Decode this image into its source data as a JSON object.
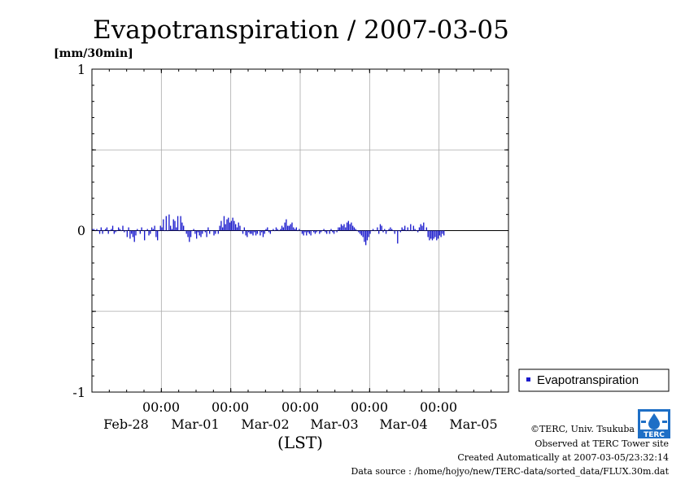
{
  "chart_data": {
    "type": "bar",
    "title": "Evapotranspiration / 2007-03-05",
    "ylabel": "[mm/30min]",
    "xlabel": "(LST)",
    "ylim": [
      -1,
      1
    ],
    "yticks": [
      "1",
      "0",
      "-1"
    ],
    "x_time_labels": [
      "00:00",
      "00:00",
      "00:00",
      "00:00",
      "00:00"
    ],
    "x_date_labels": [
      "Feb-28",
      "Mar-01",
      "Mar-02",
      "Mar-03",
      "Mar-04",
      "Mar-05"
    ],
    "x_range_days": [
      0.0,
      6.0
    ],
    "midnight_positions_days": [
      1,
      2,
      3,
      4,
      5
    ],
    "grid": true,
    "legend_position": "right",
    "series": [
      {
        "name": "Evapotranspiration",
        "color": "#1a1acc",
        "interval_minutes": 30,
        "start_day": 0.0,
        "values": [
          0.01,
          0.01,
          0.0,
          0.01,
          0.0,
          -0.02,
          0.02,
          -0.02,
          0.0,
          0.01,
          0.02,
          -0.02,
          0.0,
          0.01,
          0.03,
          -0.02,
          -0.01,
          0.0,
          0.02,
          0.01,
          0.0,
          0.03,
          -0.01,
          0.0,
          -0.04,
          0.02,
          -0.05,
          -0.02,
          -0.04,
          -0.07,
          -0.03,
          0.01,
          0.0,
          -0.02,
          0.02,
          0.0,
          -0.06,
          0.0,
          0.01,
          -0.03,
          -0.02,
          0.02,
          0.01,
          0.03,
          -0.04,
          -0.06,
          0.0,
          0.03,
          0.02,
          0.07,
          0.0,
          0.09,
          0.0,
          0.1,
          0.03,
          0.01,
          0.07,
          0.06,
          0.02,
          0.09,
          0.0,
          0.09,
          0.05,
          0.03,
          0.0,
          -0.02,
          -0.04,
          -0.07,
          -0.04,
          0.0,
          0.01,
          -0.02,
          -0.05,
          -0.01,
          -0.03,
          -0.04,
          -0.02,
          0.0,
          -0.01,
          -0.04,
          0.02,
          -0.02,
          0.0,
          0.0,
          -0.03,
          -0.02,
          0.0,
          -0.02,
          0.03,
          0.06,
          0.02,
          0.09,
          0.04,
          0.07,
          0.08,
          0.05,
          0.06,
          0.08,
          0.06,
          0.04,
          0.02,
          0.05,
          0.03,
          0.0,
          -0.02,
          0.02,
          -0.03,
          -0.04,
          -0.01,
          -0.02,
          -0.02,
          -0.03,
          -0.01,
          -0.03,
          -0.02,
          0.0,
          -0.03,
          -0.01,
          -0.04,
          -0.02,
          0.01,
          0.02,
          -0.01,
          -0.02,
          0.0,
          0.01,
          0.0,
          0.02,
          0.01,
          0.0,
          0.01,
          0.03,
          0.02,
          0.05,
          0.07,
          0.03,
          0.03,
          0.04,
          0.05,
          0.02,
          0.01,
          0.02,
          0.0,
          0.01,
          0.0,
          -0.02,
          -0.03,
          -0.01,
          -0.03,
          -0.01,
          -0.02,
          -0.03,
          0.0,
          -0.01,
          -0.02,
          -0.01,
          0.0,
          -0.02,
          -0.01,
          0.0,
          0.01,
          -0.01,
          -0.02,
          0.0,
          -0.02,
          0.01,
          -0.01,
          -0.02,
          0.0,
          -0.01,
          0.02,
          0.02,
          0.04,
          0.03,
          0.04,
          0.02,
          0.05,
          0.06,
          0.04,
          0.05,
          0.03,
          0.02,
          0.01,
          0.0,
          -0.01,
          -0.02,
          -0.03,
          -0.04,
          -0.07,
          -0.09,
          -0.06,
          -0.04,
          -0.02,
          0.0,
          0.01,
          0.0,
          0.0,
          0.02,
          -0.02,
          0.04,
          0.03,
          -0.01,
          0.01,
          -0.02,
          0.0,
          0.01,
          0.02,
          0.01,
          0.0,
          -0.02,
          0.0,
          -0.08,
          0.0,
          -0.01,
          0.02,
          0.01,
          0.03,
          0.0,
          0.02,
          0.0,
          0.04,
          0.0,
          0.03,
          0.01,
          0.0,
          -0.01,
          0.02,
          0.04,
          0.03,
          0.05,
          0.0,
          0.02,
          -0.04,
          -0.06,
          -0.05,
          -0.06,
          -0.05,
          -0.04,
          -0.06,
          -0.05,
          -0.03,
          -0.04,
          -0.02,
          -0.03
        ]
      }
    ]
  },
  "credits": {
    "org": "©TERC, Univ. Tsukuba",
    "site": "Observed at TERC Tower site",
    "created": "Created Automatically at 2007-03-05/23:32:14",
    "source": "Data source : /home/hojyo/new/TERC-data/sorted_data/FLUX.30m.dat",
    "logo_text": "TERC"
  }
}
